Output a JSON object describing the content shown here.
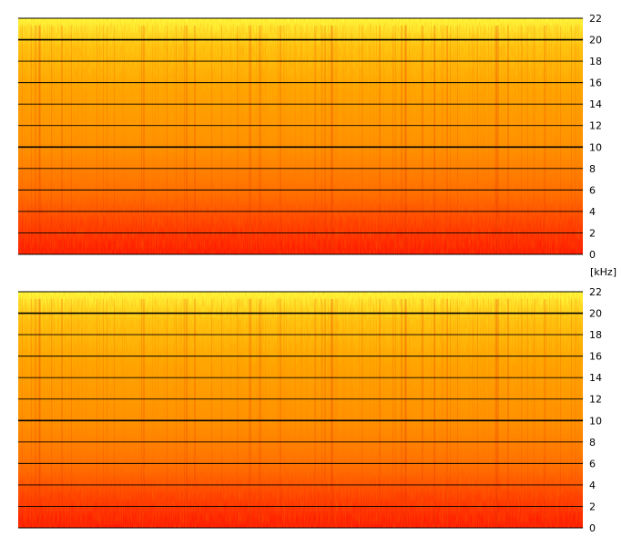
{
  "chart_data": [
    {
      "type": "heatmap",
      "title": "",
      "xlabel": "",
      "ylabel": "",
      "yunit": "[kHz]",
      "y_ticks": [
        0,
        2,
        4,
        6,
        8,
        10,
        12,
        14,
        16,
        18,
        20,
        22
      ],
      "ylim": [
        0,
        22
      ],
      "grid": true,
      "colormap": [
        "#ff1000",
        "#ff5a00",
        "#ffa000",
        "#ffd020",
        "#ffff40"
      ]
    },
    {
      "type": "heatmap",
      "title": "",
      "xlabel": "",
      "ylabel": "",
      "y_ticks": [
        0,
        2,
        4,
        6,
        8,
        10,
        12,
        14,
        16,
        18,
        20,
        22
      ],
      "ylim": [
        0,
        22
      ],
      "grid": true,
      "colormap": [
        "#ff1000",
        "#ff5a00",
        "#ffa000",
        "#ffd020",
        "#ffff40"
      ]
    }
  ]
}
